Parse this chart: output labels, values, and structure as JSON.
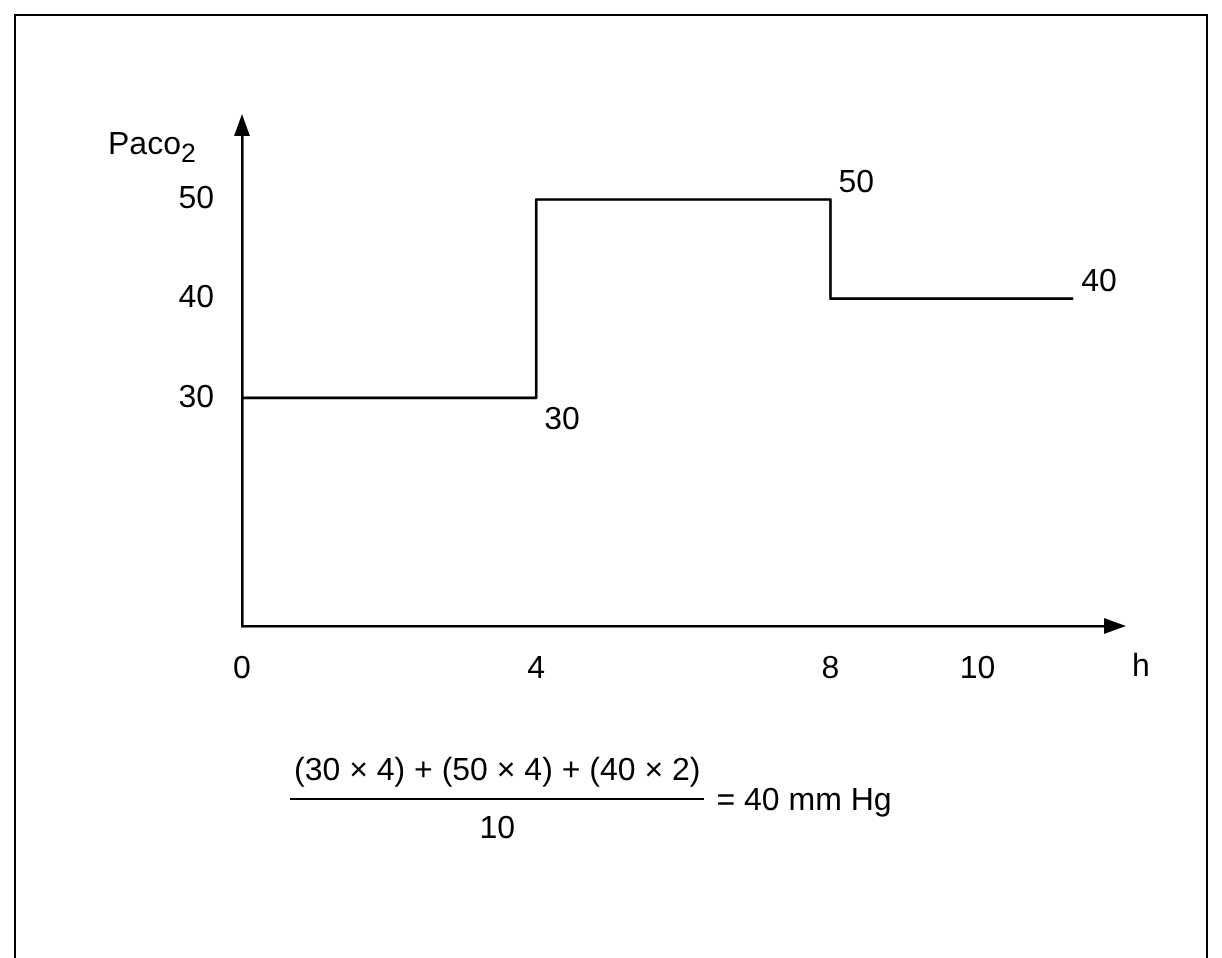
{
  "chart_data": {
    "type": "line",
    "xlabel": "h",
    "ylabel": "Paco$_{2}$",
    "x": [
      0,
      4,
      4,
      8,
      8,
      11.3
    ],
    "series": [
      {
        "color": "#000000",
        "values": [
          30,
          30,
          50,
          50,
          40,
          40
        ],
        "value_labels": [
          null,
          "30",
          null,
          "50",
          null,
          "40"
        ]
      }
    ],
    "xlim": [
      0,
      11.8
    ],
    "xticks": [
      0,
      4,
      8,
      10
    ],
    "ylim": [
      7,
      57
    ],
    "yticks": [
      30,
      40,
      50
    ],
    "grid": false,
    "legend": false,
    "marker": "none",
    "line_style": "solid",
    "annotations": [
      "(30 × 4) + (50 × 4) + (40 × 2)",
      "10",
      "= 40 mm Hg"
    ]
  }
}
